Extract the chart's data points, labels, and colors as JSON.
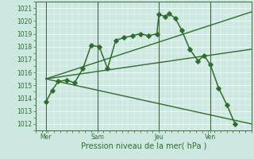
{
  "xlabel": "Pression niveau de la mer( hPa )",
  "background_color": "#cce8e0",
  "grid_color": "#ffffff",
  "line_color": "#2d6e2d",
  "ylim": [
    1011.5,
    1021.5
  ],
  "yticks": [
    1012,
    1013,
    1014,
    1015,
    1016,
    1017,
    1018,
    1019,
    1020,
    1021
  ],
  "xlim": [
    0,
    10.5
  ],
  "xtick_labels": [
    "Mer",
    "Sam",
    "Jeu",
    "Ven"
  ],
  "xtick_positions": [
    0.5,
    3.0,
    6.0,
    8.5
  ],
  "vline_positions": [
    0.5,
    3.0,
    6.0,
    8.5
  ],
  "main_series": {
    "x": [
      0.5,
      0.8,
      1.1,
      1.5,
      1.9,
      2.3,
      2.7,
      3.1,
      3.5,
      3.9,
      4.3,
      4.7,
      5.1,
      5.5,
      5.9,
      6.0,
      6.3,
      6.5,
      6.8,
      7.1,
      7.5,
      7.9,
      8.2,
      8.5,
      8.9,
      9.3,
      9.7
    ],
    "y": [
      1013.7,
      1014.6,
      1015.3,
      1015.4,
      1015.2,
      1016.3,
      1018.1,
      1018.0,
      1016.3,
      1018.5,
      1018.7,
      1018.85,
      1019.0,
      1018.85,
      1019.0,
      1020.5,
      1020.35,
      1020.55,
      1020.2,
      1019.3,
      1017.8,
      1016.9,
      1017.3,
      1016.6,
      1014.8,
      1013.5,
      1012.0
    ],
    "marker": "D",
    "markersize": 2.8,
    "linewidth": 1.1
  },
  "fan_lines": [
    {
      "x": [
        0.5,
        10.5
      ],
      "y": [
        1015.5,
        1012.0
      ],
      "linewidth": 1.0
    },
    {
      "x": [
        0.5,
        10.5
      ],
      "y": [
        1015.5,
        1017.8
      ],
      "linewidth": 1.0
    },
    {
      "x": [
        0.5,
        10.5
      ],
      "y": [
        1015.5,
        1020.7
      ],
      "linewidth": 1.0
    }
  ],
  "tick_fontsize": 5.5,
  "xlabel_fontsize": 7.0
}
